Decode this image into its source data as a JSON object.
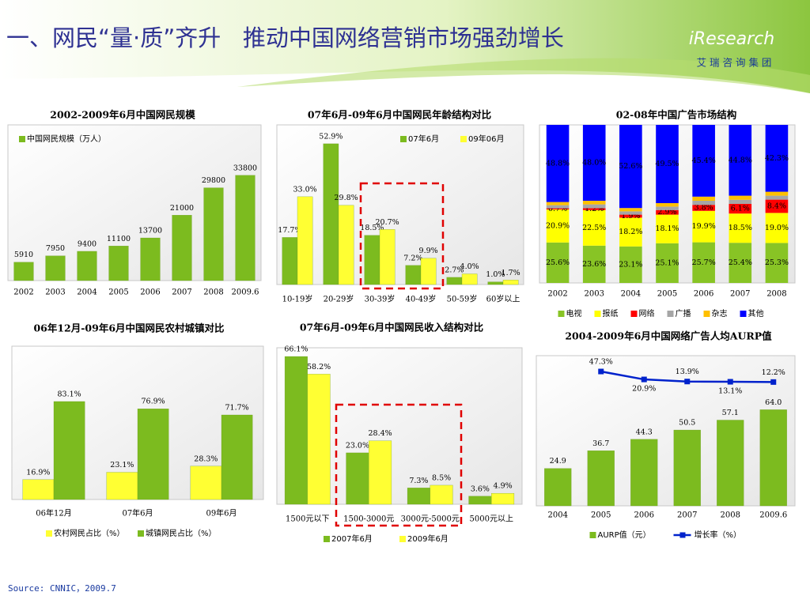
{
  "header": {
    "title": "一、网民“量·质”齐升   推动中国网络营销市场强劲增长",
    "logo": "iResearch",
    "logo_sub": "艾 瑞 咨 询 集 团"
  },
  "source": "Source: CNNIC，2009.7",
  "chart_data": [
    {
      "type": "bar",
      "title": "2002-2009年6月中国网民规模",
      "categories": [
        "2002",
        "2003",
        "2004",
        "2005",
        "2006",
        "2007",
        "2008",
        "2009.6"
      ],
      "series": [
        {
          "name": "中国网民规模（万人）",
          "color": "#7cbb1f",
          "values": [
            5910,
            7950,
            9400,
            11100,
            13700,
            21000,
            29800,
            33800
          ]
        }
      ],
      "ylim": [
        0,
        50000
      ],
      "legend": "upper left"
    },
    {
      "type": "bar",
      "title": "07年6月-09年6月中国网民年龄结构对比",
      "categories": [
        "10-19岁",
        "20-29岁",
        "30-39岁",
        "40-49岁",
        "50-59岁",
        "60岁以上"
      ],
      "series": [
        {
          "name": "07年6月",
          "color": "#7cbb1f",
          "values": [
            17.7,
            52.9,
            18.5,
            7.2,
            2.7,
            1.0
          ],
          "value_labels": [
            "17.7%",
            "52.9%",
            "18.5%",
            "7.2%",
            "2.7%",
            "1.0%"
          ]
        },
        {
          "name": "09年06月",
          "color": "#ffff33",
          "values": [
            33.0,
            29.8,
            20.7,
            9.9,
            4.0,
            1.7
          ],
          "value_labels": [
            "33.0%",
            "29.8%",
            "20.7%",
            "9.9%",
            "4.0%",
            "1.7%"
          ]
        }
      ],
      "ylim": [
        0,
        60
      ],
      "legend": "upper right"
    },
    {
      "type": "stacked_bar",
      "title": "02-08年中国广告市场结构",
      "categories": [
        "2002",
        "2003",
        "2004",
        "2005",
        "2006",
        "2007",
        "2008"
      ],
      "series": [
        {
          "name": "电视",
          "color": "#88c425",
          "values": [
            25.6,
            23.6,
            23.1,
            25.1,
            25.7,
            25.4,
            25.3
          ],
          "value_labels": [
            "25.6%",
            "23.6%",
            "23.1%",
            "25.1%",
            "25.7%",
            "25.4%",
            "25.3%"
          ]
        },
        {
          "name": "报纸",
          "color": "#ffff00",
          "values": [
            20.9,
            22.5,
            18.2,
            18.1,
            19.9,
            18.5,
            19.0
          ],
          "value_labels": [
            "20.9%",
            "22.5%",
            "18.2%",
            "18.1%",
            "19.9%",
            "18.5%",
            "19.0%"
          ]
        },
        {
          "name": "网络",
          "color": "#ff0000",
          "values": [
            0.7,
            1.2,
            1.9,
            2.9,
            3.8,
            6.1,
            8.4
          ],
          "value_labels": [
            "0.7%",
            "1.2%",
            "1.9%",
            "2.9%",
            "3.8%",
            "6.1%",
            "8.4%"
          ]
        },
        {
          "name": "广播",
          "color": "#a6a6a6",
          "values": [
            2.0,
            2.4,
            2.1,
            2.2,
            2.6,
            2.6,
            2.5
          ]
        },
        {
          "name": "杂志",
          "color": "#ffc000",
          "values": [
            2.0,
            2.3,
            2.1,
            2.2,
            2.6,
            2.6,
            2.5
          ]
        },
        {
          "name": "其他",
          "color": "#0000ff",
          "values": [
            48.8,
            48.0,
            52.6,
            49.5,
            45.4,
            44.8,
            42.3
          ],
          "value_labels": [
            "48.8%",
            "48.0%",
            "52.6%",
            "49.5%",
            "45.4%",
            "44.8%",
            "42.3%"
          ],
          "label_color": "#d8d8ff"
        }
      ],
      "ylim": [
        0,
        100
      ],
      "legend": "lower center"
    },
    {
      "type": "bar",
      "title": "06年12月-09年6月中国网民农村城镇对比",
      "categories": [
        "06年12月",
        "07年6月",
        "09年6月"
      ],
      "series": [
        {
          "name": "农村网民占比（%）",
          "color": "#ffff33",
          "values": [
            16.9,
            23.1,
            28.3
          ],
          "value_labels": [
            "16.9%",
            "23.1%",
            "28.3%"
          ],
          "label_color": "#e00000"
        },
        {
          "name": "城镇网民占比（%）",
          "color": "#7cbb1f",
          "values": [
            83.1,
            76.9,
            71.7
          ],
          "value_labels": [
            "83.1%",
            "76.9%",
            "71.7%"
          ]
        }
      ],
      "ylim": [
        0,
        130
      ],
      "legend": "lower center"
    },
    {
      "type": "bar",
      "title": "07年6月-09年6月中国网民收入结构对比",
      "categories": [
        "1500元以下",
        "1500-3000元",
        "3000元-5000元",
        "5000元以上"
      ],
      "series": [
        {
          "name": "2007年6月",
          "color": "#7cbb1f",
          "values": [
            66.1,
            23.0,
            7.3,
            3.6
          ],
          "value_labels": [
            "66.1%",
            "23.0%",
            "7.3%",
            "3.6%"
          ]
        },
        {
          "name": "2009年6月",
          "color": "#ffff33",
          "values": [
            58.2,
            28.4,
            8.5,
            4.9
          ],
          "value_labels": [
            "58.2%",
            "28.4%",
            "8.5%",
            "4.9%"
          ]
        }
      ],
      "ylim": [
        0,
        70
      ],
      "legend": "lower center"
    },
    {
      "type": "bar_line",
      "title": "2004-2009年6月中国网络广告人均AURP值",
      "categories": [
        "2004",
        "2005",
        "2006",
        "2007",
        "2008",
        "2009.6"
      ],
      "series": [
        {
          "name": "AURP值（元）",
          "color": "#7cbb1f",
          "values": [
            24.9,
            36.7,
            44.3,
            50.5,
            57.1,
            64.0
          ],
          "value_labels": [
            "24.9",
            "36.7",
            "44.3",
            "50.5",
            "57.1",
            "64.0"
          ]
        },
        {
          "name": "增长率（%）",
          "color": "#0022cc",
          "axis": "y2",
          "values": [
            null,
            47.3,
            20.9,
            13.9,
            13.1,
            12.2
          ],
          "value_labels": [
            null,
            "47.3%",
            "20.9%",
            "13.9%",
            "13.1%",
            "12.2%"
          ]
        }
      ],
      "ylim": [
        0,
        100
      ],
      "y2lim": [
        -400,
        100
      ],
      "legend": "lower center"
    }
  ]
}
